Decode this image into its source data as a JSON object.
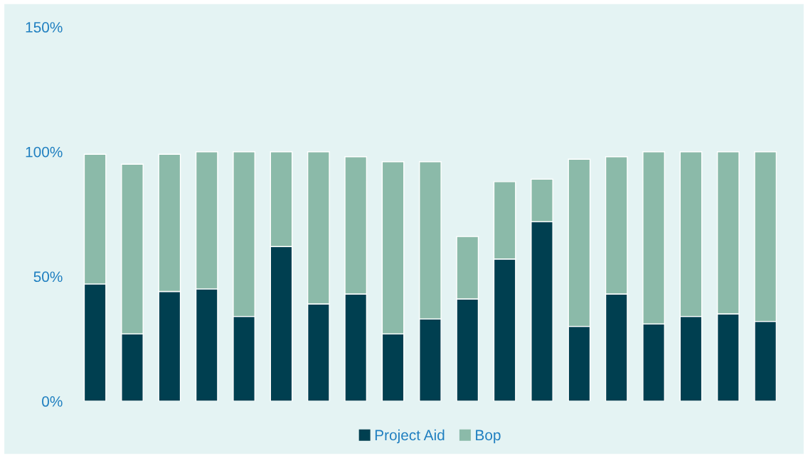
{
  "chart_data": {
    "type": "bar",
    "stacked": true,
    "categories": [
      null,
      null,
      null,
      null,
      null,
      null,
      null,
      null,
      null,
      null,
      null,
      null,
      null,
      null,
      null,
      null,
      null,
      null,
      null
    ],
    "series": [
      {
        "name": "Project Aid",
        "color": "#003f50",
        "values": [
          47,
          27,
          44,
          45,
          34,
          62,
          39,
          43,
          27,
          33,
          41,
          57,
          72,
          30,
          43,
          31,
          34,
          35,
          32
        ]
      },
      {
        "name": "Bop",
        "color": "#8bbaa9",
        "values": [
          52,
          68,
          55,
          55,
          66,
          38,
          61,
          55,
          69,
          63,
          25,
          31,
          17,
          67,
          55,
          69,
          66,
          65,
          68
        ]
      }
    ],
    "ylim": [
      0,
      150
    ],
    "yticks": [
      {
        "value": 0,
        "label": "0%"
      },
      {
        "value": 50,
        "label": "50%"
      },
      {
        "value": 100,
        "label": "100%"
      },
      {
        "value": 150,
        "label": "150%"
      }
    ],
    "grid": false,
    "legend": "bottom"
  }
}
